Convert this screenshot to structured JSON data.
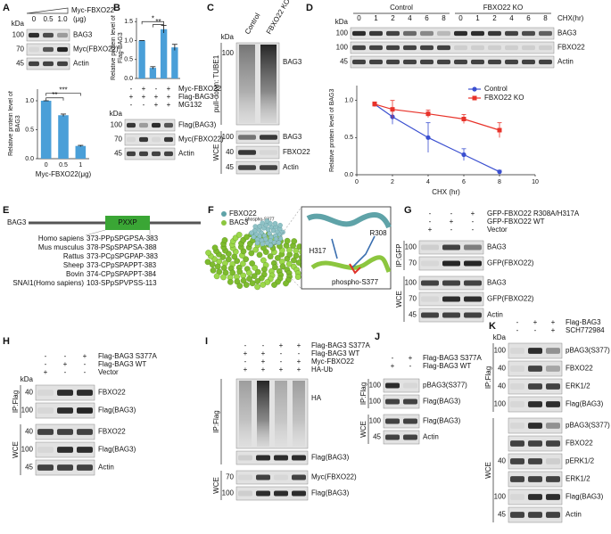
{
  "chart_data": [
    {
      "type": "bar",
      "ylabel": "Relative protein level of BAG3",
      "xlabel": "Myc-FBXO22(μg)",
      "categories": [
        "0",
        "0.5",
        "1"
      ],
      "values": [
        1.0,
        0.75,
        0.22
      ],
      "errors": [
        0,
        0.02,
        0.01
      ],
      "color": "#4a9fd8",
      "ylim": [
        0,
        1.2
      ],
      "yticks": [
        {
          "value": 0,
          "label": "0.0"
        },
        0.5,
        {
          "value": 1,
          "label": "1.0"
        }
      ],
      "annotations": [
        "***",
        "**"
      ]
    },
    {
      "type": "bar",
      "ylabel": "Relative protein level of Flag-BAG3",
      "values": [
        1.0,
        0.28,
        1.3,
        0.82
      ],
      "errors": [
        0,
        0.03,
        0.1,
        0.08
      ],
      "color": "#4a9fd8",
      "ylim": [
        0,
        1.6
      ],
      "yticks": [
        {
          "value": 0,
          "label": "0.0"
        },
        0.5,
        {
          "value": 1,
          "label": "1.0"
        },
        1.5
      ],
      "annotations": [
        "*",
        "**"
      ]
    },
    {
      "type": "line",
      "xlabel": "CHX (hr)",
      "ylabel": "Relative protein level of BAG3",
      "x": [
        1,
        2,
        4,
        6,
        8
      ],
      "xlim": [
        0,
        10
      ],
      "xticks": [
        0,
        2,
        4,
        6,
        8,
        10
      ],
      "ylim": [
        0,
        1.2
      ],
      "yticks": [
        {
          "value": 0,
          "label": "0.0"
        },
        0.5,
        {
          "value": 1,
          "label": "1.0"
        }
      ],
      "legend": "upper right",
      "series": [
        {
          "name": "Control",
          "color": "#3a4fd0",
          "marker": "circle",
          "values": [
            0.95,
            0.78,
            0.5,
            0.27,
            0.04
          ],
          "errors": [
            0.02,
            0.1,
            0.2,
            0.08,
            0.02
          ]
        },
        {
          "name": "FBXO22 KO",
          "color": "#e8332a",
          "marker": "square",
          "values": [
            0.95,
            0.88,
            0.82,
            0.75,
            0.6
          ],
          "errors": [
            0.03,
            0.12,
            0.05,
            0.06,
            0.1
          ]
        }
      ]
    }
  ],
  "panels": {
    "A": {
      "letter": "A",
      "titration_label": "Myc-FBXO22",
      "kda_header": "kDa",
      "conditions": [
        {
          "label": "(μg)",
          "signs": [
            "0",
            "0.5",
            "1.0"
          ]
        }
      ],
      "groups": [
        {
          "blots": [
            {
              "kda": 100,
              "label": "BAG3"
            },
            {
              "kda": 70,
              "label": "Myc(FBXO22)"
            },
            {
              "kda": 45,
              "label": "Actin"
            }
          ]
        }
      ]
    },
    "B": {
      "letter": "B",
      "kda_header": "kDa",
      "conditions": [
        {
          "label": "Myc-FBXO22",
          "signs": [
            "-",
            "+",
            "-",
            "+"
          ]
        },
        {
          "label": "Flag-BAG3",
          "signs": [
            "+",
            "+",
            "+",
            "+"
          ]
        },
        {
          "label": "MG132",
          "signs": [
            "-",
            "-",
            "+",
            "+"
          ]
        }
      ],
      "groups": [
        {
          "blots": [
            {
              "kda": 100,
              "label": "Flag(BAG3)"
            },
            {
              "kda": 70,
              "label": "Myc(FBXO22)"
            },
            {
              "kda": 45,
              "label": "Actin"
            }
          ]
        }
      ]
    },
    "C": {
      "letter": "C",
      "kda_header": "kDa",
      "columns": [
        "Control",
        "FBXO22 KO"
      ],
      "groups": [
        {
          "title": "pull-down: TUBE1",
          "blots": [
            {
              "kda": 100,
              "label": "BAG3"
            }
          ]
        },
        {
          "title": "WCE",
          "blots": [
            {
              "kda": 100,
              "label": "BAG3"
            },
            {
              "kda": 40,
              "label": "FBXO22"
            },
            {
              "kda": 45,
              "label": "Actin"
            }
          ]
        }
      ]
    },
    "D": {
      "letter": "D",
      "kda_header": "kDa",
      "column_groups": [
        "Control",
        "FBXO22 KO"
      ],
      "conditions": [
        {
          "label": "CHX(hr)",
          "signs": [
            "0",
            "1",
            "2",
            "4",
            "6",
            "8",
            "0",
            "1",
            "2",
            "4",
            "6",
            "8"
          ]
        }
      ],
      "groups": [
        {
          "blots": [
            {
              "kda": 100,
              "label": "BAG3"
            },
            {
              "kda": 100,
              "label": "FBXO22"
            },
            {
              "kda": 45,
              "label": "Actin"
            }
          ]
        }
      ]
    },
    "E": {
      "letter": "E",
      "gene": "BAG3",
      "motif": "PXXP",
      "alignment": [
        {
          "species": "Homo sapiens",
          "sequence": "373-PPpSPGPSA-383"
        },
        {
          "species": "Mus musculus",
          "sequence": "378-PSpSPAPSA-388"
        },
        {
          "species": "Rattus",
          "sequence": "373-PCpSPGPAP-383"
        },
        {
          "species": "Sheep",
          "sequence": "373-CPpSPAPPT-383"
        },
        {
          "species": "Bovin",
          "sequence": "374-CPpSPAPPT-384"
        },
        {
          "species": "SNAI1(Homo sapiens)",
          "sequence": "103-SPpSPVPSS-113"
        }
      ]
    },
    "F": {
      "letter": "F",
      "legend": [
        "FBXO22",
        {
          "name": "BAG3",
          "superscript": "phospho-S377"
        }
      ],
      "residues": [
        "R308",
        "H317",
        "phospho-S377"
      ]
    },
    "G": {
      "letter": "G",
      "conditions": [
        {
          "label": "GFP-FBXO22 R308A/H317A",
          "signs": [
            "-",
            "-",
            "+"
          ]
        },
        {
          "label": "GFP-FBXO22 WT",
          "signs": [
            "-",
            "+",
            "-"
          ]
        },
        {
          "label": "Vector",
          "signs": [
            "+",
            "-",
            "-"
          ]
        }
      ],
      "groups": [
        {
          "title": "IP:GFP",
          "blots": [
            {
              "kda": 100,
              "label": "BAG3"
            },
            {
              "kda": 70,
              "label": "GFP(FBXO22)"
            }
          ]
        },
        {
          "title": "WCE",
          "blots": [
            {
              "kda": 100,
              "label": "BAG3"
            },
            {
              "kda": 70,
              "label": "GFP(FBXO22)"
            },
            {
              "kda": 45,
              "label": "Actin"
            }
          ]
        }
      ]
    },
    "H": {
      "letter": "H",
      "kda_header": "kDa",
      "conditions": [
        {
          "label": "Flag-BAG3 S377A",
          "signs": [
            "-",
            "-",
            "+"
          ]
        },
        {
          "label": "Flag-BAG3 WT",
          "signs": [
            "-",
            "+",
            "-"
          ]
        },
        {
          "label": "Vector",
          "signs": [
            "+",
            "-",
            "-"
          ]
        }
      ],
      "groups": [
        {
          "title": "IP:Flag",
          "blots": [
            {
              "kda": 40,
              "label": "FBXO22"
            },
            {
              "kda": 100,
              "label": "Flag(BAG3)"
            }
          ]
        },
        {
          "title": "WCE",
          "blots": [
            {
              "kda": 40,
              "label": "FBXO22"
            },
            {
              "kda": 100,
              "label": "Flag(BAG3)"
            },
            {
              "kda": 45,
              "label": "Actin"
            }
          ]
        }
      ]
    },
    "I": {
      "letter": "I",
      "conditions": [
        {
          "label": "Flag-BAG3 S377A",
          "signs": [
            "-",
            "-",
            "+",
            "+"
          ]
        },
        {
          "label": "Flag-BAG3 WT",
          "signs": [
            "+",
            "+",
            "-",
            "-"
          ]
        },
        {
          "label": "Myc-FBXO22",
          "signs": [
            "-",
            "+",
            "-",
            "+"
          ]
        },
        {
          "label": "HA-Ub",
          "signs": [
            "+",
            "+",
            "+",
            "+"
          ]
        }
      ],
      "groups": [
        {
          "title": "IP:Flag",
          "blots": [
            {
              "label": "HA"
            },
            {
              "label": "Flag(BAG3)"
            }
          ]
        },
        {
          "title": "WCE",
          "blots": [
            {
              "kda": 70,
              "label": "Myc(FBXO22)"
            },
            {
              "kda": 100,
              "label": "Flag(BAG3)"
            }
          ]
        }
      ]
    },
    "J": {
      "letter": "J",
      "conditions": [
        {
          "label": "Flag-BAG3 S377A",
          "signs": [
            "-",
            "+"
          ]
        },
        {
          "label": "Flag-BAG3 WT",
          "signs": [
            "+",
            "-"
          ]
        }
      ],
      "groups": [
        {
          "title": "IP:Flag",
          "blots": [
            {
              "kda": 100,
              "label": "pBAG3(S377)"
            },
            {
              "kda": 100,
              "label": "Flag(BAG3)"
            }
          ]
        },
        {
          "title": "WCE",
          "blots": [
            {
              "kda": 100,
              "label": "Flag(BAG3)"
            },
            {
              "kda": 45,
              "label": "Actin"
            }
          ]
        }
      ]
    },
    "K": {
      "letter": "K",
      "kda_header": "kDa",
      "conditions": [
        {
          "label": "Flag-BAG3",
          "signs": [
            "-",
            "+",
            "+"
          ]
        },
        {
          "label": "SCH772984",
          "signs": [
            "-",
            "-",
            "+"
          ]
        }
      ],
      "groups": [
        {
          "title": "IP:Flag",
          "blots": [
            {
              "kda": 100,
              "label": "pBAG3(S377)"
            },
            {
              "kda": 40,
              "label": "FBXO22"
            },
            {
              "kda": 40,
              "label": "ERK1/2"
            },
            {
              "kda": 100,
              "label": "Flag(BAG3)"
            }
          ]
        },
        {
          "title": "WCE",
          "blots": [
            {
              "label": "pBAG3(S377)"
            },
            {
              "label": "FBXO22"
            },
            {
              "kda": 40,
              "label": "pERK1/2"
            },
            {
              "label": "ERK1/2"
            },
            {
              "kda": 100,
              "label": "Flag(BAG3)"
            },
            {
              "kda": 45,
              "label": "Actin"
            }
          ]
        }
      ]
    }
  }
}
